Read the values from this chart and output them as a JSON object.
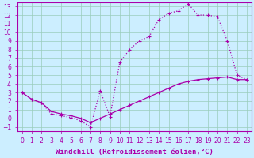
{
  "xlabel": "Windchill (Refroidissement éolien,°C)",
  "bg_color": "#cceeff",
  "line_color": "#aa00aa",
  "grid_color": "#99ccbb",
  "xlim": [
    -0.5,
    23.5
  ],
  "ylim": [
    -1.5,
    13.5
  ],
  "xticks": [
    0,
    1,
    2,
    3,
    4,
    5,
    6,
    7,
    8,
    9,
    10,
    11,
    12,
    13,
    14,
    15,
    16,
    17,
    18,
    19,
    20,
    21,
    22,
    23
  ],
  "yticks": [
    -1,
    0,
    1,
    2,
    3,
    4,
    5,
    6,
    7,
    8,
    9,
    10,
    11,
    12,
    13
  ],
  "curve_solid_x": [
    0,
    1,
    2,
    3,
    4,
    5,
    6,
    7,
    8,
    9,
    10,
    11,
    12,
    13,
    14,
    15,
    16,
    17,
    18,
    19,
    20,
    21,
    22,
    23
  ],
  "curve_solid_y": [
    3.0,
    2.2,
    1.8,
    0.8,
    0.5,
    0.3,
    0.0,
    -0.5,
    0.0,
    0.5,
    1.0,
    1.5,
    2.0,
    2.5,
    3.0,
    3.5,
    4.0,
    4.3,
    4.5,
    4.6,
    4.7,
    4.8,
    4.5,
    4.5
  ],
  "curve_dotted_x": [
    0,
    1,
    2,
    3,
    4,
    5,
    6,
    7,
    8,
    9,
    10,
    11,
    12,
    13,
    14,
    15,
    16,
    17,
    18,
    19,
    20,
    21,
    22,
    23
  ],
  "curve_dotted_y": [
    3.0,
    2.2,
    1.8,
    0.5,
    0.3,
    0.1,
    -0.3,
    -1.0,
    3.2,
    0.2,
    6.5,
    8.0,
    9.0,
    9.5,
    11.5,
    12.2,
    12.5,
    13.3,
    12.0,
    12.0,
    11.8,
    9.0,
    5.0,
    4.5
  ],
  "xlabel_fontsize": 6.5,
  "tick_fontsize": 5.5
}
